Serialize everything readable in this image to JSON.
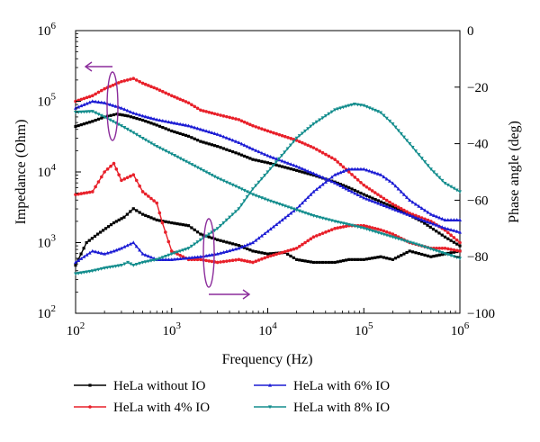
{
  "chart_data": {
    "type": "line",
    "xlabel": "Frequency (Hz)",
    "ylabel_left": "Impedance (Ohm)",
    "ylabel_right": "Phase angle (deg)",
    "x_scale": "log",
    "xlim": [
      100,
      1000000
    ],
    "ylim_left": [
      100,
      1000000
    ],
    "ylim_right": [
      -100,
      0
    ],
    "x_ticks": [
      {
        "base": "10",
        "exp": "2"
      },
      {
        "base": "10",
        "exp": "3"
      },
      {
        "base": "10",
        "exp": "4"
      },
      {
        "base": "10",
        "exp": "5"
      },
      {
        "base": "10",
        "exp": "6"
      }
    ],
    "y_left_ticks": [
      {
        "base": "10",
        "exp": "2"
      },
      {
        "base": "10",
        "exp": "3"
      },
      {
        "base": "10",
        "exp": "4"
      },
      {
        "base": "10",
        "exp": "5"
      },
      {
        "base": "10",
        "exp": "6"
      }
    ],
    "y_right_ticks": [
      "0",
      "−20",
      "−40",
      "−60",
      "−80",
      "−100"
    ],
    "grid": false,
    "legend_position": "bottom",
    "series": [
      {
        "name": "HeLa without IO",
        "color": "#000000",
        "marker": "square",
        "impedance": [
          [
            100,
            44000
          ],
          [
            150,
            52000
          ],
          [
            200,
            60000
          ],
          [
            270,
            66000
          ],
          [
            350,
            62000
          ],
          [
            500,
            54000
          ],
          [
            700,
            46000
          ],
          [
            1000,
            38000
          ],
          [
            1500,
            32000
          ],
          [
            2000,
            27000
          ],
          [
            3000,
            23000
          ],
          [
            5000,
            18000
          ],
          [
            7000,
            15000
          ],
          [
            10000,
            13500
          ],
          [
            20000,
            10500
          ],
          [
            30000,
            9000
          ],
          [
            50000,
            7200
          ],
          [
            70000,
            6000
          ],
          [
            100000,
            4800
          ],
          [
            200000,
            3200
          ],
          [
            400000,
            2000
          ],
          [
            700000,
            1200
          ],
          [
            1000000,
            900
          ]
        ],
        "phase": [
          [
            100,
            -83
          ],
          [
            130,
            -75
          ],
          [
            170,
            -72
          ],
          [
            250,
            -68
          ],
          [
            320,
            -66
          ],
          [
            400,
            -63
          ],
          [
            500,
            -65
          ],
          [
            700,
            -67
          ],
          [
            1000,
            -68
          ],
          [
            1500,
            -69
          ],
          [
            2000,
            -72
          ],
          [
            3000,
            -74
          ],
          [
            5000,
            -76
          ],
          [
            7000,
            -78
          ],
          [
            10000,
            -79
          ],
          [
            15000,
            -78.5
          ],
          [
            20000,
            -81
          ],
          [
            30000,
            -82
          ],
          [
            50000,
            -82
          ],
          [
            70000,
            -81
          ],
          [
            100000,
            -81
          ],
          [
            150000,
            -80
          ],
          [
            200000,
            -81
          ],
          [
            300000,
            -78
          ],
          [
            500000,
            -80
          ],
          [
            700000,
            -79
          ],
          [
            1000000,
            -78
          ]
        ]
      },
      {
        "name": "HeLa with 4% IO",
        "color": "#e8202a",
        "marker": "circle",
        "impedance": [
          [
            100,
            100000
          ],
          [
            150,
            120000
          ],
          [
            200,
            150000
          ],
          [
            300,
            190000
          ],
          [
            400,
            210000
          ],
          [
            500,
            180000
          ],
          [
            700,
            150000
          ],
          [
            1000,
            120000
          ],
          [
            1500,
            95000
          ],
          [
            2000,
            75000
          ],
          [
            3000,
            65000
          ],
          [
            5000,
            55000
          ],
          [
            7000,
            45000
          ],
          [
            10000,
            38000
          ],
          [
            20000,
            28000
          ],
          [
            30000,
            22000
          ],
          [
            50000,
            15000
          ],
          [
            70000,
            10000
          ],
          [
            100000,
            6500
          ],
          [
            150000,
            4500
          ],
          [
            200000,
            3500
          ],
          [
            300000,
            2600
          ],
          [
            500000,
            2000
          ],
          [
            700000,
            1500
          ],
          [
            1000000,
            1000
          ]
        ],
        "phase": [
          [
            100,
            -58
          ],
          [
            150,
            -57
          ],
          [
            200,
            -50
          ],
          [
            250,
            -47
          ],
          [
            300,
            -53
          ],
          [
            400,
            -51
          ],
          [
            500,
            -57
          ],
          [
            700,
            -61
          ],
          [
            800,
            -68
          ],
          [
            1000,
            -78
          ],
          [
            1500,
            -81
          ],
          [
            2000,
            -81
          ],
          [
            3000,
            -82
          ],
          [
            5000,
            -81
          ],
          [
            7000,
            -82
          ],
          [
            10000,
            -80
          ],
          [
            20000,
            -77
          ],
          [
            30000,
            -73
          ],
          [
            50000,
            -70
          ],
          [
            70000,
            -69
          ],
          [
            100000,
            -69
          ],
          [
            150000,
            -70.5
          ],
          [
            200000,
            -72
          ],
          [
            300000,
            -75
          ],
          [
            500000,
            -77
          ],
          [
            700000,
            -77
          ],
          [
            1000000,
            -78
          ]
        ]
      },
      {
        "name": "HeLa with 6% IO",
        "color": "#1c1cd4",
        "marker": "triangle",
        "impedance": [
          [
            100,
            80000
          ],
          [
            150,
            100000
          ],
          [
            200,
            95000
          ],
          [
            300,
            80000
          ],
          [
            400,
            68000
          ],
          [
            500,
            62000
          ],
          [
            700,
            55000
          ],
          [
            1000,
            50000
          ],
          [
            1500,
            45000
          ],
          [
            2000,
            40000
          ],
          [
            3000,
            34000
          ],
          [
            5000,
            26000
          ],
          [
            7000,
            21000
          ],
          [
            10000,
            17000
          ],
          [
            20000,
            12000
          ],
          [
            30000,
            9500
          ],
          [
            50000,
            7000
          ],
          [
            70000,
            5500
          ],
          [
            100000,
            4300
          ],
          [
            200000,
            3000
          ],
          [
            400000,
            2100
          ],
          [
            700000,
            1600
          ],
          [
            1000000,
            1400
          ]
        ],
        "phase": [
          [
            100,
            -82
          ],
          [
            150,
            -78
          ],
          [
            200,
            -79
          ],
          [
            250,
            -78
          ],
          [
            300,
            -77
          ],
          [
            400,
            -75
          ],
          [
            500,
            -79
          ],
          [
            700,
            -81
          ],
          [
            1000,
            -81
          ],
          [
            2000,
            -80
          ],
          [
            3000,
            -79
          ],
          [
            5000,
            -77
          ],
          [
            7000,
            -75
          ],
          [
            10000,
            -71
          ],
          [
            20000,
            -63
          ],
          [
            30000,
            -57
          ],
          [
            50000,
            -51
          ],
          [
            70000,
            -49
          ],
          [
            100000,
            -49
          ],
          [
            150000,
            -51
          ],
          [
            200000,
            -54
          ],
          [
            300000,
            -60
          ],
          [
            500000,
            -65
          ],
          [
            700000,
            -67
          ],
          [
            1000000,
            -67
          ]
        ]
      },
      {
        "name": "HeLa with 8% IO",
        "color": "#138d8d",
        "marker": "triangle-down",
        "impedance": [
          [
            100,
            70000
          ],
          [
            150,
            72000
          ],
          [
            200,
            60000
          ],
          [
            300,
            45000
          ],
          [
            400,
            36000
          ],
          [
            500,
            30000
          ],
          [
            700,
            23000
          ],
          [
            1000,
            18000
          ],
          [
            2000,
            11000
          ],
          [
            3000,
            8200
          ],
          [
            5000,
            6000
          ],
          [
            7000,
            4800
          ],
          [
            10000,
            4000
          ],
          [
            20000,
            2900
          ],
          [
            30000,
            2400
          ],
          [
            50000,
            2000
          ],
          [
            70000,
            1800
          ],
          [
            100000,
            1600
          ],
          [
            200000,
            1200
          ],
          [
            400000,
            900
          ],
          [
            700000,
            700
          ],
          [
            1000000,
            600
          ]
        ],
        "phase": [
          [
            100,
            -86
          ],
          [
            150,
            -85
          ],
          [
            200,
            -84
          ],
          [
            300,
            -83
          ],
          [
            350,
            -82
          ],
          [
            400,
            -83
          ],
          [
            500,
            -82
          ],
          [
            700,
            -81
          ],
          [
            1000,
            -79
          ],
          [
            1500,
            -77
          ],
          [
            2000,
            -74
          ],
          [
            3000,
            -70
          ],
          [
            5000,
            -63
          ],
          [
            7000,
            -56
          ],
          [
            10000,
            -50
          ],
          [
            15000,
            -43
          ],
          [
            20000,
            -38
          ],
          [
            30000,
            -33
          ],
          [
            50000,
            -28
          ],
          [
            70000,
            -26.5
          ],
          [
            80000,
            -26
          ],
          [
            100000,
            -26.5
          ],
          [
            150000,
            -29
          ],
          [
            200000,
            -33
          ],
          [
            300000,
            -40
          ],
          [
            500000,
            -49
          ],
          [
            700000,
            -54
          ],
          [
            1000000,
            -57
          ]
        ]
      }
    ]
  }
}
